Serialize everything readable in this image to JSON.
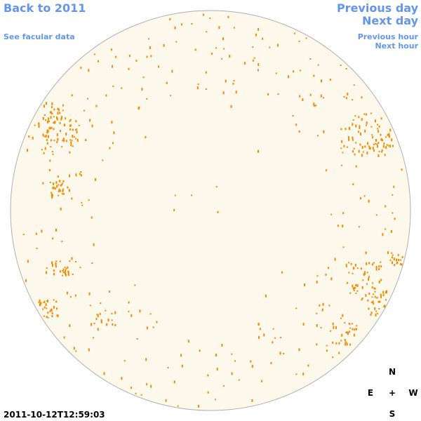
{
  "navigation": {
    "back": "Back to 2011",
    "facular_data": "See facular data",
    "previous_day": "Previous day",
    "next_day": "Next day",
    "previous_hour": "Previous hour",
    "next_hour": "Next hour"
  },
  "timestamp": "2011-10-12T12:59:03",
  "compass": {
    "north": "N",
    "east": "E",
    "center": "+",
    "west": "W",
    "south": "S"
  }
}
